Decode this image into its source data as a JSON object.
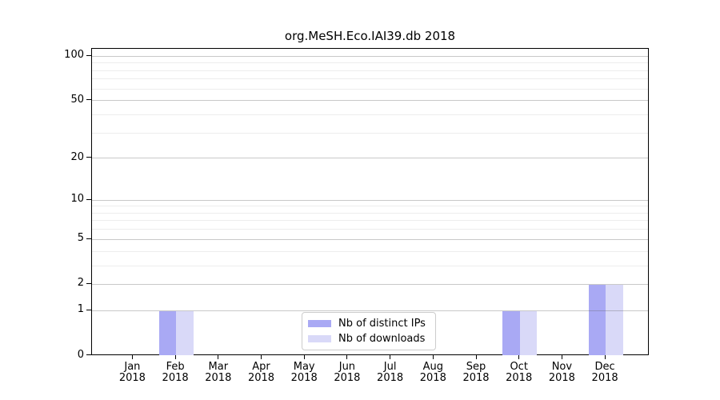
{
  "chart_data": {
    "type": "bar",
    "title": "org.MeSH.Eco.IAI39.db 2018",
    "categories": [
      "Jan 2018",
      "Feb 2018",
      "Mar 2018",
      "Apr 2018",
      "May 2018",
      "Jun 2018",
      "Jul 2018",
      "Aug 2018",
      "Sep 2018",
      "Oct 2018",
      "Nov 2018",
      "Dec 2018"
    ],
    "series": [
      {
        "name": "Nb of distinct IPs",
        "color": "#a9a9f4",
        "values": [
          0,
          1,
          0,
          0,
          0,
          0,
          0,
          0,
          0,
          1,
          0,
          2
        ]
      },
      {
        "name": "Nb of downloads",
        "color": "#d9d9f8",
        "values": [
          0,
          1,
          0,
          0,
          0,
          0,
          0,
          0,
          0,
          1,
          0,
          2
        ]
      }
    ],
    "yscale": "log1p",
    "yticks": [
      0,
      1,
      2,
      5,
      10,
      20,
      50,
      100
    ],
    "minor_gridlines": [
      3,
      4,
      6,
      7,
      8,
      9,
      30,
      40,
      60,
      70,
      80,
      90
    ],
    "ylim": [
      0,
      113
    ],
    "xlabel": "",
    "ylabel": "",
    "grid": true,
    "legend_position": "lower center"
  },
  "colors": {
    "distinct_ips_bar": "#a9a9f4",
    "downloads_bar": "#d9d9f8",
    "spine": "#000000",
    "minor_grid": "#ededed",
    "major_grid": "#c8c8c8",
    "legend_border": "#cccccc"
  }
}
